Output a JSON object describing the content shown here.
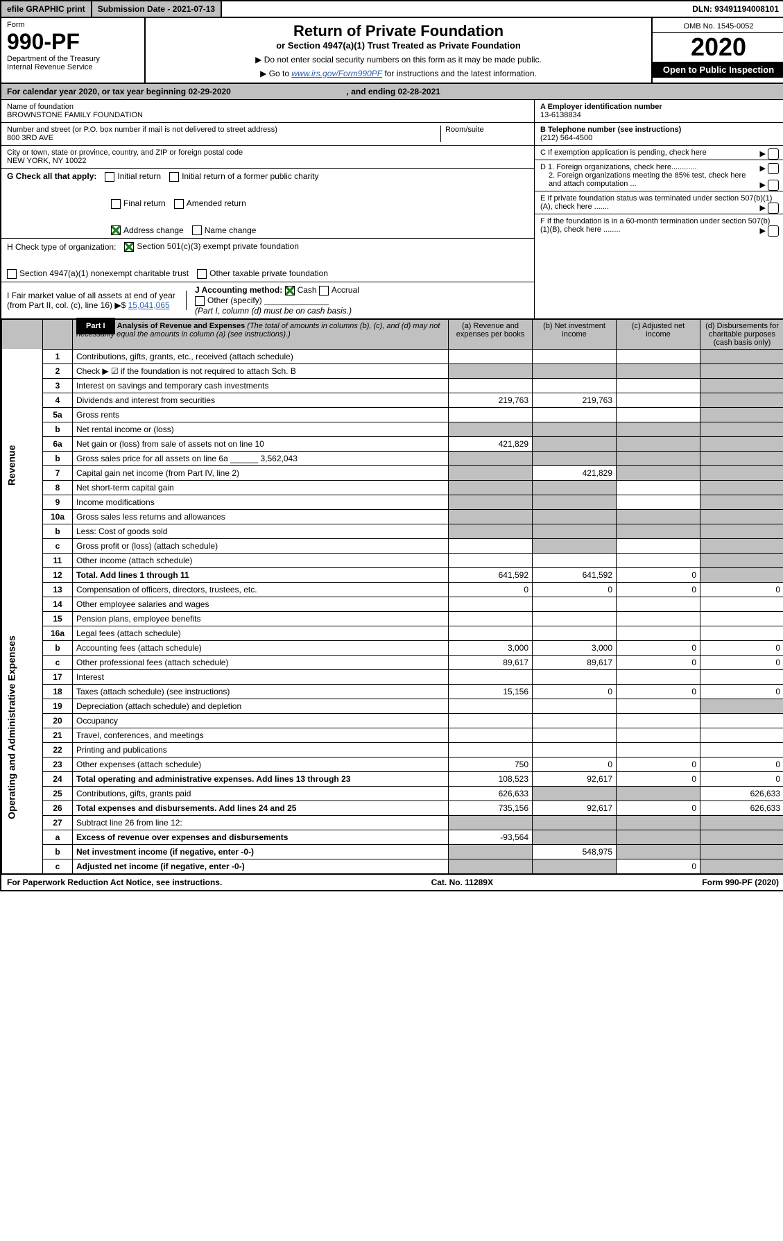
{
  "topbar": {
    "efile": "efile GRAPHIC print",
    "subdate": "Submission Date - 2021-07-13",
    "dln": "DLN: 93491194008101"
  },
  "form": {
    "label": "Form",
    "number": "990-PF",
    "dept": "Department of the Treasury",
    "irs": "Internal Revenue Service"
  },
  "title": {
    "main": "Return of Private Foundation",
    "sub": "or Section 4947(a)(1) Trust Treated as Private Foundation",
    "note1": "▶ Do not enter social security numbers on this form as it may be made public.",
    "note2_prefix": "▶ Go to ",
    "note2_link": "www.irs.gov/Form990PF",
    "note2_suffix": " for instructions and the latest information."
  },
  "yearbox": {
    "omb": "OMB No. 1545-0052",
    "year": "2020",
    "open": "Open to Public Inspection"
  },
  "cal": {
    "text_a": "For calendar year 2020, or tax year beginning ",
    "begin": "02-29-2020",
    "text_b": ", and ending ",
    "end": "02-28-2021"
  },
  "ident": {
    "name_label": "Name of foundation",
    "name": "BROWNSTONE FAMILY FOUNDATION",
    "addr_label": "Number and street (or P.O. box number if mail is not delivered to street address)",
    "addr": "800 3RD AVE",
    "room_label": "Room/suite",
    "csz_label": "City or town, state or province, country, and ZIP or foreign postal code",
    "csz": "NEW YORK, NY  10022",
    "ein_label": "A Employer identification number",
    "ein": "13-6138834",
    "phone_label": "B Telephone number (see instructions)",
    "phone": "(212) 564-4500",
    "c_label": "C If exemption application is pending, check here",
    "d1": "D 1. Foreign organizations, check here............",
    "d2": "2. Foreign organizations meeting the 85% test, check here and attach computation ...",
    "e": "E If private foundation status was terminated under section 507(b)(1)(A), check here .......",
    "f": "F If the foundation is in a 60-month termination under section 507(b)(1)(B), check here ........"
  },
  "g": {
    "label": "G Check all that apply:",
    "opts": [
      "Initial return",
      "Initial return of a former public charity",
      "Final return",
      "Amended return",
      "Address change",
      "Name change"
    ]
  },
  "h": {
    "label": "H Check type of organization:",
    "a": "Section 501(c)(3) exempt private foundation",
    "b": "Section 4947(a)(1) nonexempt charitable trust",
    "c": "Other taxable private foundation"
  },
  "i": {
    "label": "I Fair market value of all assets at end of year (from Part II, col. (c), line 16) ▶$",
    "val": "15,041,065"
  },
  "j": {
    "label": "J Accounting method:",
    "cash": "Cash",
    "accrual": "Accrual",
    "other": "Other (specify)",
    "note": "(Part I, column (d) must be on cash basis.)"
  },
  "part1": {
    "label": "Part I",
    "title": "Analysis of Revenue and Expenses",
    "ital": "(The total of amounts in columns (b), (c), and (d) may not necessarily equal the amounts in column (a) (see instructions).)",
    "cols": {
      "a": "(a) Revenue and expenses per books",
      "b": "(b) Net investment income",
      "c": "(c) Adjusted net income",
      "d": "(d) Disbursements for charitable purposes (cash basis only)"
    }
  },
  "sidelabels": {
    "revenue": "Revenue",
    "expenses": "Operating and Administrative Expenses"
  },
  "rows": [
    {
      "n": "1",
      "label": "Contributions, gifts, grants, etc., received (attach schedule)",
      "a": "",
      "b": "",
      "c": "",
      "d": "",
      "d_shade": true
    },
    {
      "n": "2",
      "label": "Check ▶ ☑ if the foundation is not required to attach Sch. B",
      "a": "",
      "b": "",
      "c": "",
      "d": "",
      "d_shade": true,
      "b_shade": true,
      "c_shade": true,
      "a_shade": true
    },
    {
      "n": "3",
      "label": "Interest on savings and temporary cash investments",
      "a": "",
      "b": "",
      "c": "",
      "d": "",
      "d_shade": true
    },
    {
      "n": "4",
      "label": "Dividends and interest from securities",
      "a": "219,763",
      "b": "219,763",
      "c": "",
      "d": "",
      "d_shade": true
    },
    {
      "n": "5a",
      "label": "Gross rents",
      "a": "",
      "b": "",
      "c": "",
      "d": "",
      "d_shade": true
    },
    {
      "n": "b",
      "label": "Net rental income or (loss)",
      "a": "",
      "b": "",
      "c": "",
      "d": "",
      "a_shade": true,
      "b_shade": true,
      "c_shade": true,
      "d_shade": true
    },
    {
      "n": "6a",
      "label": "Net gain or (loss) from sale of assets not on line 10",
      "a": "421,829",
      "b": "",
      "c": "",
      "d": "",
      "b_shade": true,
      "c_shade": true,
      "d_shade": true
    },
    {
      "n": "b",
      "label": "Gross sales price for all assets on line 6a ______ 3,562,043",
      "a": "",
      "b": "",
      "c": "",
      "d": "",
      "a_shade": true,
      "b_shade": true,
      "c_shade": true,
      "d_shade": true
    },
    {
      "n": "7",
      "label": "Capital gain net income (from Part IV, line 2)",
      "a": "",
      "b": "421,829",
      "c": "",
      "d": "",
      "a_shade": true,
      "c_shade": true,
      "d_shade": true
    },
    {
      "n": "8",
      "label": "Net short-term capital gain",
      "a": "",
      "b": "",
      "c": "",
      "d": "",
      "a_shade": true,
      "b_shade": true,
      "d_shade": true
    },
    {
      "n": "9",
      "label": "Income modifications",
      "a": "",
      "b": "",
      "c": "",
      "d": "",
      "a_shade": true,
      "b_shade": true,
      "d_shade": true
    },
    {
      "n": "10a",
      "label": "Gross sales less returns and allowances",
      "a": "",
      "b": "",
      "c": "",
      "d": "",
      "a_shade": true,
      "b_shade": true,
      "c_shade": true,
      "d_shade": true
    },
    {
      "n": "b",
      "label": "Less: Cost of goods sold",
      "a": "",
      "b": "",
      "c": "",
      "d": "",
      "a_shade": true,
      "b_shade": true,
      "c_shade": true,
      "d_shade": true
    },
    {
      "n": "c",
      "label": "Gross profit or (loss) (attach schedule)",
      "a": "",
      "b": "",
      "c": "",
      "d": "",
      "b_shade": true,
      "d_shade": true
    },
    {
      "n": "11",
      "label": "Other income (attach schedule)",
      "a": "",
      "b": "",
      "c": "",
      "d": "",
      "d_shade": true
    },
    {
      "n": "12",
      "label": "Total. Add lines 1 through 11",
      "bold": true,
      "a": "641,592",
      "b": "641,592",
      "c": "0",
      "d": "",
      "d_shade": true
    },
    {
      "n": "13",
      "label": "Compensation of officers, directors, trustees, etc.",
      "a": "0",
      "b": "0",
      "c": "0",
      "d": "0"
    },
    {
      "n": "14",
      "label": "Other employee salaries and wages",
      "a": "",
      "b": "",
      "c": "",
      "d": ""
    },
    {
      "n": "15",
      "label": "Pension plans, employee benefits",
      "a": "",
      "b": "",
      "c": "",
      "d": ""
    },
    {
      "n": "16a",
      "label": "Legal fees (attach schedule)",
      "a": "",
      "b": "",
      "c": "",
      "d": ""
    },
    {
      "n": "b",
      "label": "Accounting fees (attach schedule)",
      "a": "3,000",
      "b": "3,000",
      "c": "0",
      "d": "0"
    },
    {
      "n": "c",
      "label": "Other professional fees (attach schedule)",
      "a": "89,617",
      "b": "89,617",
      "c": "0",
      "d": "0"
    },
    {
      "n": "17",
      "label": "Interest",
      "a": "",
      "b": "",
      "c": "",
      "d": ""
    },
    {
      "n": "18",
      "label": "Taxes (attach schedule) (see instructions)",
      "a": "15,156",
      "b": "0",
      "c": "0",
      "d": "0"
    },
    {
      "n": "19",
      "label": "Depreciation (attach schedule) and depletion",
      "a": "",
      "b": "",
      "c": "",
      "d": "",
      "d_shade": true
    },
    {
      "n": "20",
      "label": "Occupancy",
      "a": "",
      "b": "",
      "c": "",
      "d": ""
    },
    {
      "n": "21",
      "label": "Travel, conferences, and meetings",
      "a": "",
      "b": "",
      "c": "",
      "d": ""
    },
    {
      "n": "22",
      "label": "Printing and publications",
      "a": "",
      "b": "",
      "c": "",
      "d": ""
    },
    {
      "n": "23",
      "label": "Other expenses (attach schedule)",
      "a": "750",
      "b": "0",
      "c": "0",
      "d": "0"
    },
    {
      "n": "24",
      "label": "Total operating and administrative expenses. Add lines 13 through 23",
      "bold": true,
      "a": "108,523",
      "b": "92,617",
      "c": "0",
      "d": "0"
    },
    {
      "n": "25",
      "label": "Contributions, gifts, grants paid",
      "a": "626,633",
      "b": "",
      "c": "",
      "d": "626,633",
      "b_shade": true,
      "c_shade": true
    },
    {
      "n": "26",
      "label": "Total expenses and disbursements. Add lines 24 and 25",
      "bold": true,
      "a": "735,156",
      "b": "92,617",
      "c": "0",
      "d": "626,633"
    },
    {
      "n": "27",
      "label": "Subtract line 26 from line 12:",
      "a": "",
      "b": "",
      "c": "",
      "d": "",
      "a_shade": true,
      "b_shade": true,
      "c_shade": true,
      "d_shade": true
    },
    {
      "n": "a",
      "label": "Excess of revenue over expenses and disbursements",
      "bold": true,
      "a": "-93,564",
      "b": "",
      "c": "",
      "d": "",
      "b_shade": true,
      "c_shade": true,
      "d_shade": true
    },
    {
      "n": "b",
      "label": "Net investment income (if negative, enter -0-)",
      "bold": true,
      "a": "",
      "b": "548,975",
      "c": "",
      "d": "",
      "a_shade": true,
      "c_shade": true,
      "d_shade": true
    },
    {
      "n": "c",
      "label": "Adjusted net income (if negative, enter -0-)",
      "bold": true,
      "a": "",
      "b": "",
      "c": "0",
      "d": "",
      "a_shade": true,
      "b_shade": true,
      "d_shade": true
    }
  ],
  "footer": {
    "left": "For Paperwork Reduction Act Notice, see instructions.",
    "mid": "Cat. No. 11289X",
    "right": "Form 990-PF (2020)"
  }
}
